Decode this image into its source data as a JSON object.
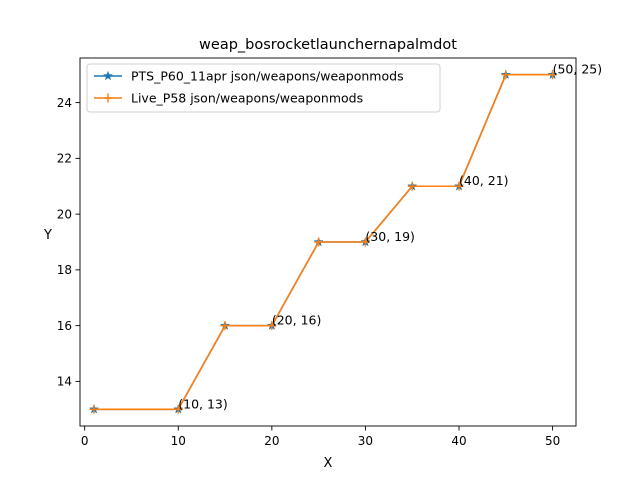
{
  "chart_data": {
    "type": "line",
    "title": "weap_bosrocketlauncher napalmdot",
    "title_text": "weap_bosrocketlaunchernapalmdot",
    "xlabel": "X",
    "ylabel": "Y",
    "xlim": [
      -0.5,
      52.5
    ],
    "ylim": [
      12.4,
      25.6
    ],
    "xticks": [
      0,
      10,
      20,
      30,
      40,
      50
    ],
    "yticks": [
      14,
      16,
      18,
      20,
      22,
      24
    ],
    "grid": false,
    "legend_position": "top-left",
    "x": [
      1,
      10,
      15,
      20,
      25,
      30,
      35,
      40,
      45,
      50
    ],
    "series": [
      {
        "name": "PTS_P60_11apr json/weapons/weaponmods",
        "values": [
          13,
          13,
          16,
          16,
          19,
          19,
          21,
          21,
          25,
          25
        ],
        "color": "#1f77b4",
        "marker": "star"
      },
      {
        "name": "Live_P58 json/weapons/weaponmods",
        "values": [
          13,
          13,
          16,
          16,
          19,
          19,
          21,
          21,
          25,
          25
        ],
        "color": "#ff7f0e",
        "marker": "plus"
      }
    ],
    "annotations": [
      {
        "x": 10,
        "y": 13,
        "text": "(10, 13)"
      },
      {
        "x": 20,
        "y": 16,
        "text": "(20, 16)"
      },
      {
        "x": 30,
        "y": 19,
        "text": "(30, 19)"
      },
      {
        "x": 40,
        "y": 21,
        "text": "(40, 21)"
      },
      {
        "x": 50,
        "y": 25,
        "text": "(50, 25)"
      }
    ]
  }
}
